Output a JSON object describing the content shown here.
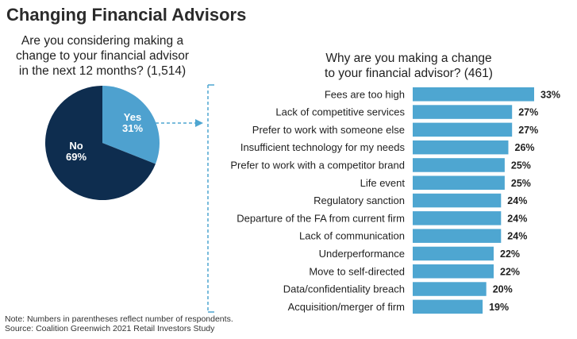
{
  "title": "Changing Financial Advisors",
  "note_line1": "Note: Numbers in parentheses reflect number of respondents.",
  "note_line2": "Source: Coalition Greenwich 2021 Retail Investors Study",
  "colors": {
    "pie_no": "#0e2d4f",
    "pie_yes": "#4ea1cf",
    "bar": "#4ea6d1",
    "connector": "#4ea6d1"
  },
  "chart_data": [
    {
      "type": "pie",
      "title_lines": [
        "Are you considering making a",
        "change to your financial advisor",
        "in the next 12 months? (1,514)"
      ],
      "slices": [
        {
          "label": "Yes",
          "value_label": "31%",
          "value": 31
        },
        {
          "label": "No",
          "value_label": "69%",
          "value": 69
        }
      ]
    },
    {
      "type": "bar",
      "orientation": "horizontal",
      "title_lines": [
        "Why are you making a change",
        "to your financial advisor? (461)"
      ],
      "categories": [
        "Fees are too high",
        "Lack of competitive services",
        "Prefer to work with someone else",
        "Insufficient technology for my needs",
        "Prefer to work with a competitor brand",
        "Life event",
        "Regulatory sanction",
        "Departure of the FA from current firm",
        "Lack of communication",
        "Underperformance",
        "Move to self-directed",
        "Data/confidentiality breach",
        "Acquisition/merger of firm"
      ],
      "values": [
        33,
        27,
        27,
        26,
        25,
        25,
        24,
        24,
        24,
        22,
        22,
        20,
        19
      ],
      "value_labels": [
        "33%",
        "27%",
        "27%",
        "26%",
        "25%",
        "25%",
        "24%",
        "24%",
        "24%",
        "22%",
        "22%",
        "20%",
        "19%"
      ],
      "xlim": [
        0,
        33
      ]
    }
  ]
}
